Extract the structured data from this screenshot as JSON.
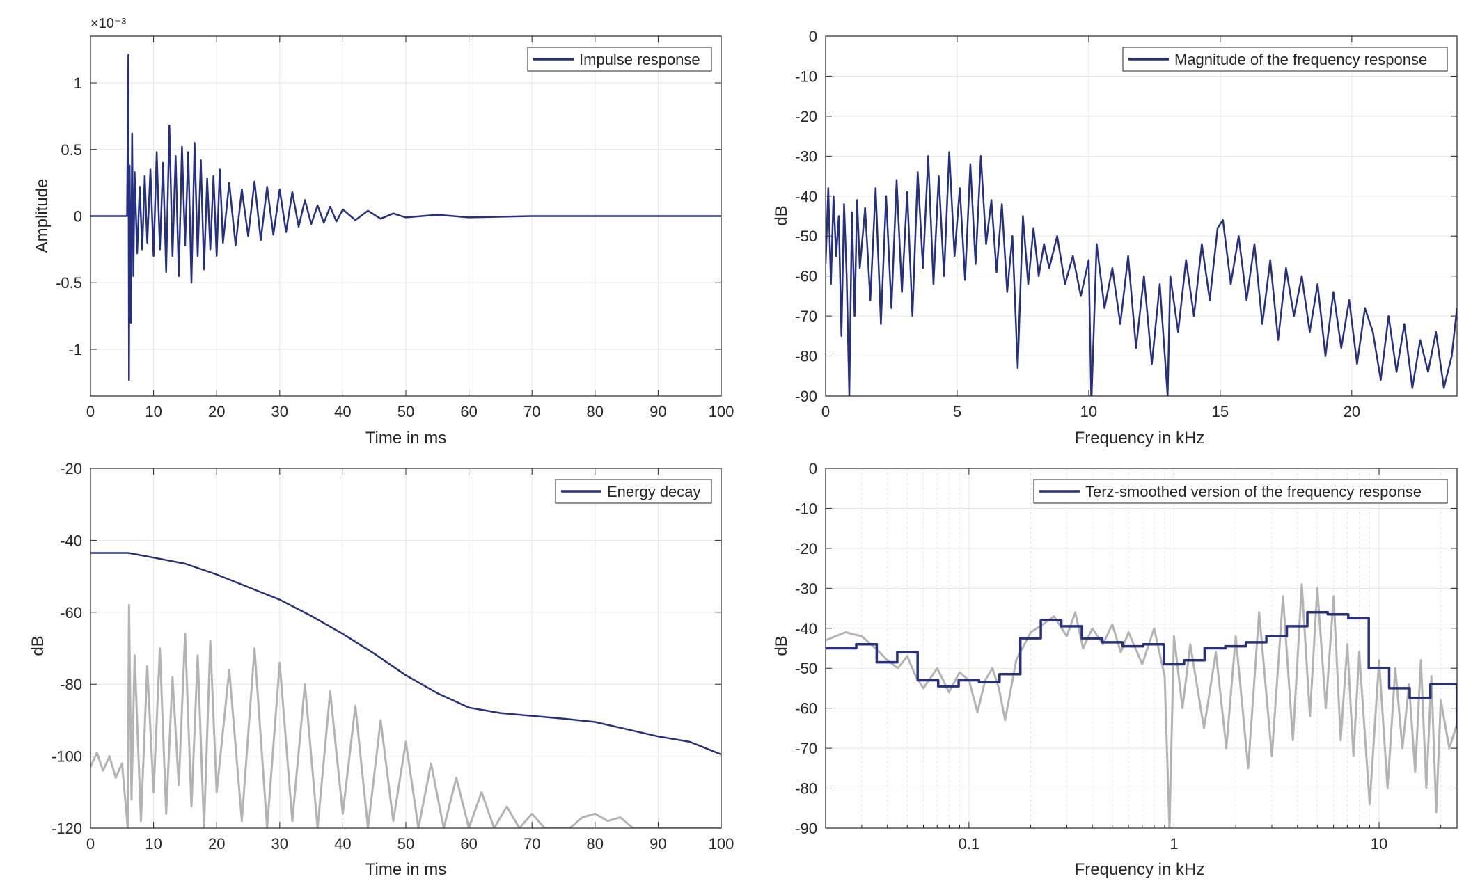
{
  "colors": {
    "main_line": "#253083",
    "gray_line": "#b3b3b3",
    "grid": "#e5e5e5",
    "axes": "#262626"
  },
  "chart_data": [
    {
      "id": "impulse",
      "type": "line",
      "xlabel": "Time in ms",
      "ylabel": "Amplitude",
      "exponent_label": "×10⁻³",
      "xlim": [
        0,
        100
      ],
      "ylim": [
        -1.35,
        1.35
      ],
      "xticks": [
        0,
        10,
        20,
        30,
        40,
        50,
        60,
        70,
        80,
        90,
        100
      ],
      "xtick_labels": [
        "0",
        "10",
        "20",
        "30",
        "40",
        "50",
        "60",
        "70",
        "80",
        "90",
        "100"
      ],
      "yticks": [
        -1,
        -0.5,
        0,
        0.5,
        1
      ],
      "ytick_labels": [
        "-1",
        "-0.5",
        "0",
        "0.5",
        "1"
      ],
      "grid": true,
      "legend_position": "top-right",
      "series": [
        {
          "name": "Impulse response",
          "color_key": "main_line",
          "x": [
            0,
            5.8,
            6.0,
            6.1,
            6.2,
            6.4,
            6.6,
            6.8,
            7.0,
            7.4,
            7.8,
            8.2,
            8.6,
            9.0,
            9.5,
            10.0,
            10.5,
            11.0,
            11.5,
            12.0,
            12.5,
            13.0,
            13.5,
            14.0,
            14.5,
            15.0,
            15.5,
            16.0,
            16.5,
            17.0,
            17.5,
            18.0,
            18.5,
            19.0,
            19.5,
            20.0,
            20.5,
            21.0,
            22.0,
            23.0,
            24.0,
            25.0,
            26.0,
            27.0,
            28.0,
            29.0,
            30.0,
            31.0,
            32.0,
            33.0,
            34.0,
            35.0,
            36.0,
            37.0,
            38.0,
            39.0,
            40.0,
            42.0,
            44.0,
            46.0,
            48.0,
            50.0,
            55.0,
            60.0,
            70.0,
            80.0,
            90.0,
            100.0
          ],
          "y": [
            0.0,
            0.0,
            1.21,
            -1.23,
            0.38,
            -0.8,
            0.62,
            -0.45,
            0.33,
            -0.28,
            0.22,
            -0.25,
            0.3,
            -0.2,
            0.35,
            -0.3,
            0.48,
            -0.25,
            0.4,
            -0.42,
            0.68,
            -0.3,
            0.45,
            -0.45,
            0.52,
            -0.22,
            0.48,
            -0.5,
            0.55,
            -0.3,
            0.42,
            -0.4,
            0.28,
            -0.25,
            0.3,
            -0.3,
            0.35,
            -0.2,
            0.25,
            -0.22,
            0.2,
            -0.15,
            0.26,
            -0.18,
            0.22,
            -0.14,
            0.2,
            -0.12,
            0.18,
            -0.08,
            0.12,
            -0.06,
            0.08,
            -0.05,
            0.07,
            -0.04,
            0.05,
            -0.03,
            0.04,
            -0.02,
            0.02,
            -0.01,
            0.01,
            -0.01,
            0.0,
            0.0,
            0.0,
            0.0
          ]
        }
      ]
    },
    {
      "id": "magnitude",
      "type": "line",
      "xlabel": "Frequency in kHz",
      "ylabel": "dB",
      "xlim": [
        0,
        24
      ],
      "ylim": [
        -90,
        0
      ],
      "xticks": [
        0,
        5,
        10,
        15,
        20
      ],
      "xtick_labels": [
        "0",
        "5",
        "10",
        "15",
        "20"
      ],
      "yticks": [
        -90,
        -80,
        -70,
        -60,
        -50,
        -40,
        -30,
        -20,
        -10,
        0
      ],
      "ytick_labels": [
        "-90",
        "-80",
        "-70",
        "-60",
        "-50",
        "-40",
        "-30",
        "-20",
        "-10",
        "0"
      ],
      "grid": true,
      "legend_position": "top-right",
      "series": [
        {
          "name": "Magnitude of the frequency response",
          "color_key": "main_line",
          "x": [
            0.0,
            0.1,
            0.2,
            0.3,
            0.4,
            0.5,
            0.6,
            0.7,
            0.8,
            0.9,
            1.0,
            1.1,
            1.2,
            1.3,
            1.5,
            1.7,
            1.9,
            2.1,
            2.3,
            2.5,
            2.7,
            2.9,
            3.1,
            3.3,
            3.5,
            3.7,
            3.9,
            4.1,
            4.3,
            4.5,
            4.7,
            4.9,
            5.1,
            5.3,
            5.5,
            5.7,
            5.9,
            6.1,
            6.3,
            6.5,
            6.7,
            6.9,
            7.1,
            7.3,
            7.5,
            7.7,
            7.9,
            8.1,
            8.3,
            8.5,
            8.8,
            9.1,
            9.4,
            9.7,
            10.0,
            10.1,
            10.3,
            10.6,
            10.9,
            11.2,
            11.5,
            11.8,
            12.1,
            12.4,
            12.7,
            13.0,
            13.1,
            13.4,
            13.7,
            14.0,
            14.3,
            14.6,
            14.9,
            15.1,
            15.4,
            15.7,
            16.0,
            16.3,
            16.6,
            16.9,
            17.2,
            17.5,
            17.8,
            18.1,
            18.4,
            18.7,
            19.0,
            19.3,
            19.6,
            19.9,
            20.2,
            20.5,
            20.8,
            21.1,
            21.4,
            21.7,
            22.0,
            22.3,
            22.6,
            22.9,
            23.2,
            23.5,
            23.8,
            24.0
          ],
          "y": [
            -57,
            -38,
            -62,
            -40,
            -55,
            -45,
            -75,
            -42,
            -60,
            -90,
            -44,
            -70,
            -41,
            -58,
            -43,
            -66,
            -38,
            -72,
            -40,
            -68,
            -36,
            -64,
            -39,
            -70,
            -34,
            -58,
            -30,
            -62,
            -35,
            -60,
            -29,
            -55,
            -38,
            -61,
            -32,
            -57,
            -30,
            -52,
            -41,
            -59,
            -42,
            -64,
            -50,
            -83,
            -45,
            -62,
            -48,
            -60,
            -52,
            -58,
            -50,
            -62,
            -55,
            -65,
            -56,
            -92,
            -52,
            -68,
            -58,
            -72,
            -55,
            -78,
            -60,
            -82,
            -62,
            -90,
            -60,
            -74,
            -56,
            -70,
            -52,
            -66,
            -48,
            -46,
            -62,
            -50,
            -66,
            -52,
            -72,
            -56,
            -76,
            -58,
            -70,
            -60,
            -74,
            -62,
            -80,
            -64,
            -78,
            -66,
            -82,
            -68,
            -74,
            -86,
            -70,
            -84,
            -72,
            -88,
            -76,
            -84,
            -74,
            -88,
            -80,
            -68
          ]
        }
      ]
    },
    {
      "id": "energy",
      "type": "line",
      "xlabel": "Time in ms",
      "ylabel": "dB",
      "xlim": [
        0,
        100
      ],
      "ylim": [
        -120,
        -20
      ],
      "xticks": [
        0,
        10,
        20,
        30,
        40,
        50,
        60,
        70,
        80,
        90,
        100
      ],
      "xtick_labels": [
        "0",
        "10",
        "20",
        "30",
        "40",
        "50",
        "60",
        "70",
        "80",
        "90",
        "100"
      ],
      "yticks": [
        -120,
        -100,
        -80,
        -60,
        -40,
        -20
      ],
      "ytick_labels": [
        "-120",
        "-100",
        "-80",
        "-60",
        "-40",
        "-20"
      ],
      "grid": true,
      "legend_position": "top-right",
      "series": [
        {
          "name": "Energy decay",
          "color_key": "main_line",
          "x": [
            0,
            6,
            10,
            15,
            20,
            25,
            30,
            35,
            40,
            45,
            50,
            55,
            60,
            65,
            70,
            75,
            80,
            85,
            90,
            95,
            100
          ],
          "y": [
            -43.5,
            -43.5,
            -44.8,
            -46.5,
            -49.5,
            -53,
            -56.5,
            -61,
            -66,
            -71.5,
            -77.5,
            -82.5,
            -86.5,
            -88,
            -88.8,
            -89.6,
            -90.5,
            -92.5,
            -94.5,
            -96,
            -99.5
          ]
        },
        {
          "name": "",
          "color_key": "gray_line",
          "x": [
            0,
            1,
            2,
            3,
            4,
            5,
            5.9,
            6.1,
            6.5,
            7,
            8,
            9,
            10,
            11,
            12,
            13,
            14,
            15,
            16,
            17,
            18,
            19,
            20,
            22,
            24,
            26,
            28,
            30,
            32,
            34,
            36,
            38,
            40,
            42,
            44,
            46,
            48,
            50,
            52,
            54,
            56,
            58,
            60,
            62,
            64,
            66,
            68,
            70,
            72,
            74,
            76,
            78,
            80,
            82,
            84,
            86,
            88,
            90,
            92,
            94,
            96,
            98,
            100
          ],
          "y": [
            -103,
            -99,
            -104,
            -100,
            -106,
            -102,
            -120,
            -58,
            -112,
            -72,
            -118,
            -75,
            -110,
            -70,
            -116,
            -78,
            -108,
            -66,
            -114,
            -72,
            -120,
            -68,
            -110,
            -76,
            -118,
            -70,
            -120,
            -74,
            -118,
            -80,
            -120,
            -82,
            -116,
            -86,
            -120,
            -90,
            -118,
            -96,
            -120,
            -102,
            -120,
            -106,
            -120,
            -110,
            -120,
            -114,
            -120,
            -116,
            -120,
            -120,
            -120,
            -117,
            -116,
            -118,
            -117,
            -120,
            -120,
            -120,
            -120,
            -120,
            -120,
            -120,
            -120
          ]
        }
      ]
    },
    {
      "id": "terz",
      "type": "line",
      "xscale": "log",
      "xlabel": "Frequency in kHz",
      "ylabel": "dB",
      "xlim": [
        0.02,
        24
      ],
      "ylim": [
        -90,
        0
      ],
      "xticks": [
        0.1,
        1,
        10
      ],
      "xtick_labels": [
        "0.1",
        "1",
        "10"
      ],
      "yticks": [
        -90,
        -80,
        -70,
        -60,
        -50,
        -40,
        -30,
        -20,
        -10,
        0
      ],
      "ytick_labels": [
        "-90",
        "-80",
        "-70",
        "-60",
        "-50",
        "-40",
        "-30",
        "-20",
        "-10",
        "0"
      ],
      "grid": true,
      "legend_position": "top-right",
      "series": [
        {
          "name": "",
          "color_key": "gray_line",
          "x": [
            0.02,
            0.025,
            0.03,
            0.035,
            0.04,
            0.045,
            0.05,
            0.055,
            0.06,
            0.07,
            0.08,
            0.09,
            0.1,
            0.11,
            0.12,
            0.13,
            0.14,
            0.15,
            0.17,
            0.2,
            0.23,
            0.26,
            0.3,
            0.33,
            0.36,
            0.4,
            0.45,
            0.5,
            0.55,
            0.6,
            0.7,
            0.8,
            0.9,
            0.95,
            1.0,
            1.1,
            1.2,
            1.4,
            1.6,
            1.8,
            2.0,
            2.3,
            2.6,
            3.0,
            3.4,
            3.8,
            4.2,
            4.6,
            5.0,
            5.5,
            6.0,
            6.5,
            7.0,
            7.5,
            8.0,
            9.0,
            10.0,
            11.0,
            12.0,
            13.0,
            14.0,
            15.0,
            16.0,
            17.0,
            18.0,
            19.0,
            20.0,
            22.0,
            24.0
          ],
          "y": [
            -43,
            -41,
            -42,
            -45,
            -48,
            -50,
            -47,
            -52,
            -55,
            -50,
            -56,
            -51,
            -53,
            -61,
            -53,
            -50,
            -55,
            -63,
            -48,
            -41,
            -39,
            -37,
            -42,
            -36,
            -45,
            -40,
            -44,
            -39,
            -46,
            -41,
            -49,
            -40,
            -52,
            -90,
            -42,
            -60,
            -44,
            -65,
            -46,
            -70,
            -42,
            -75,
            -36,
            -72,
            -32,
            -68,
            -29,
            -62,
            -30,
            -60,
            -32,
            -68,
            -44,
            -72,
            -46,
            -84,
            -48,
            -80,
            -50,
            -70,
            -54,
            -76,
            -48,
            -80,
            -52,
            -86,
            -58,
            -70,
            -64
          ]
        },
        {
          "name": "Terz-smoothed version of the frequency response",
          "color_key": "main_line",
          "step": true,
          "x": [
            0.02,
            0.0282,
            0.0355,
            0.0447,
            0.0562,
            0.0708,
            0.0891,
            0.112,
            0.141,
            0.178,
            0.224,
            0.282,
            0.355,
            0.447,
            0.562,
            0.708,
            0.891,
            1.12,
            1.41,
            1.78,
            2.24,
            2.82,
            3.55,
            4.47,
            5.62,
            7.08,
            8.91,
            11.2,
            14.1,
            17.8,
            24.0
          ],
          "y": [
            -45,
            -44,
            -48.5,
            -46,
            -53,
            -54.5,
            -53,
            -53.5,
            -51.5,
            -42.5,
            -38,
            -39.5,
            -42.5,
            -43.5,
            -44.5,
            -44,
            -49,
            -48,
            -45,
            -44.5,
            -43.5,
            -42,
            -39.5,
            -36,
            -36.5,
            -37.5,
            -50,
            -55,
            -57.5,
            -54,
            -65
          ]
        }
      ]
    }
  ]
}
